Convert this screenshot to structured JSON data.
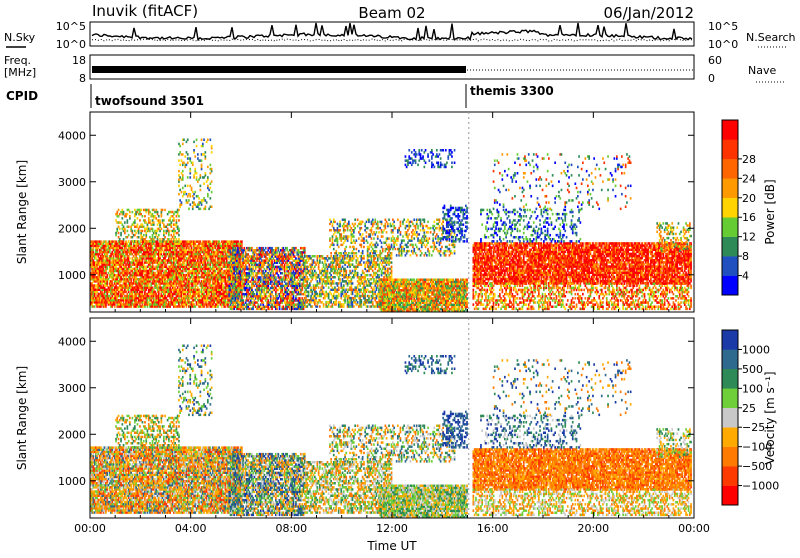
{
  "header": {
    "station": "Inuvik (fitACF)",
    "beam": "Beam 02",
    "date": "06/Jan/2012"
  },
  "left_labels": {
    "nsky": "N.Sky",
    "freq": "Freq.",
    "freq_unit": "[MHz]",
    "cpid": "CPID"
  },
  "right_labels": {
    "nsearch": "N.Search",
    "nave": "Nave"
  },
  "panel_ticks": {
    "noise_left": [
      "10^5",
      "10^0"
    ],
    "noise_right": [
      "10^5",
      "10^0"
    ],
    "freq_left": [
      "18",
      "8"
    ],
    "freq_right": [
      "60",
      "0"
    ]
  },
  "cpid_segments": [
    {
      "label": "twofsound 3501",
      "start_hour": 0
    },
    {
      "label": "themis 3300",
      "start_hour": 15.05
    }
  ],
  "colorbars": {
    "power": {
      "label": "Power [dB]",
      "ticks": [
        "4",
        "8",
        "12",
        "16",
        "20",
        "24",
        "28"
      ],
      "colors": [
        "#0000ff",
        "#2050c0",
        "#2e8b57",
        "#66cc33",
        "#ffd400",
        "#ff9900",
        "#ff6600",
        "#ff3300",
        "#ff0000"
      ]
    },
    "velocity": {
      "label": "Velocity [m s⁻¹]",
      "ticks": [
        "1000",
        "500",
        "100",
        "25",
        "−25",
        "−100",
        "−500",
        "−1000"
      ],
      "colors": [
        "#1a3aa8",
        "#2e6a8e",
        "#2e8b57",
        "#6fcf3a",
        "#c8c8c8",
        "#ffaa00",
        "#ff7a00",
        "#ff3a00",
        "#ff0000"
      ]
    }
  },
  "chart_data": [
    {
      "type": "heatmap",
      "name": "Power",
      "ylabel": "Slant Range [km]",
      "ylim": [
        200,
        4500
      ],
      "yticks": [
        "1000",
        "2000",
        "3000",
        "4000"
      ],
      "xlim": [
        0,
        24
      ],
      "xticks": [
        "00:00",
        "04:00",
        "08:00",
        "12:00",
        "16:00",
        "20:00",
        "00:00"
      ]
    },
    {
      "type": "heatmap",
      "name": "Velocity",
      "ylabel": "Slant Range [km]",
      "xlabel": "Time UT",
      "ylim": [
        200,
        4500
      ],
      "yticks": [
        "1000",
        "2000",
        "3000",
        "4000"
      ],
      "xlim": [
        0,
        24
      ],
      "xticks": [
        "00:00",
        "04:00",
        "08:00",
        "12:00",
        "16:00",
        "20:00",
        "00:00"
      ]
    }
  ]
}
